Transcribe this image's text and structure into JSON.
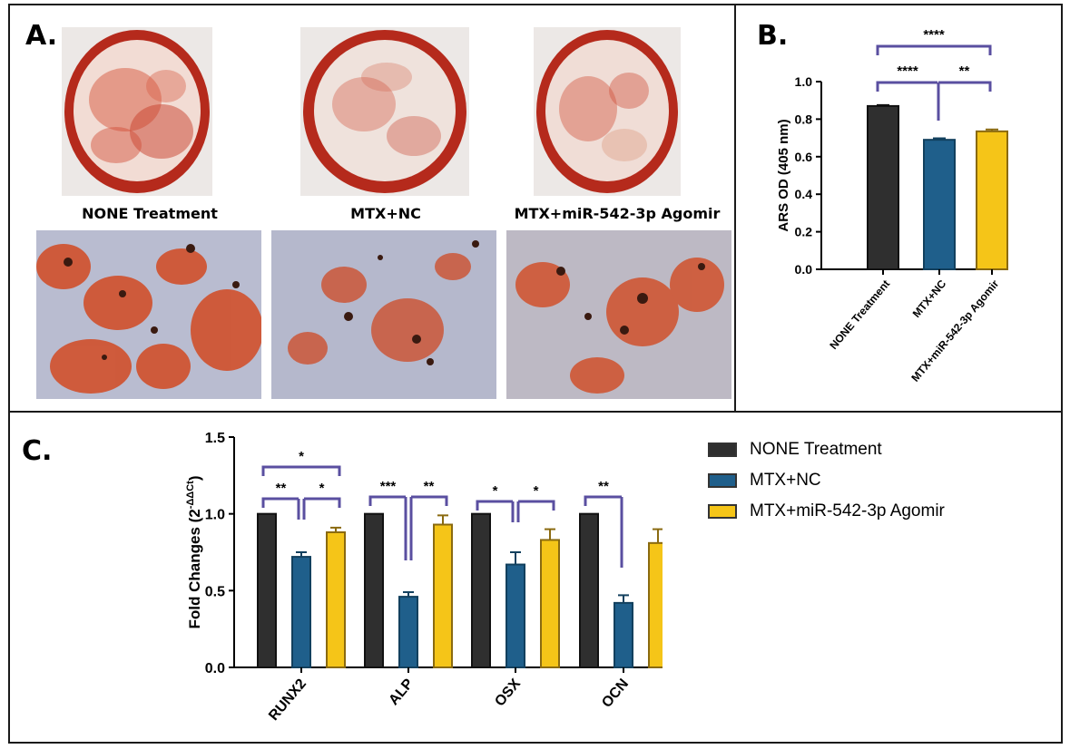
{
  "panels": {
    "a": {
      "letter": "A.",
      "captions": [
        "NONE Treatment",
        "MTX+NC",
        "MTX+miR-542-3p Agomir"
      ]
    },
    "b": {
      "letter": "B."
    },
    "c": {
      "letter": "C."
    }
  },
  "colors": {
    "none": "#2f2f2f",
    "mtx_nc": "#1f5f8b",
    "agomir": "#f5c518",
    "bracket": "#5a4fa0",
    "stain_red": "#c0321e"
  },
  "chart_data": [
    {
      "id": "ars",
      "type": "bar",
      "ylabel": "ARS OD (405 nm)",
      "ylim": [
        0,
        1.0
      ],
      "yticks": [
        "0.0",
        "0.2",
        "0.4",
        "0.6",
        "0.8",
        "1.0"
      ],
      "categories": [
        "NONE Treatment",
        "MTX+NC",
        "MTX+miR-542-3p Agomir"
      ],
      "values": [
        0.87,
        0.69,
        0.735
      ],
      "errors": [
        0.005,
        0.008,
        0.01
      ],
      "significance": [
        "****",
        "**",
        "****"
      ]
    },
    {
      "id": "fold",
      "type": "bar",
      "ylabel": "Fold Changes (2",
      "ylabel_sup": "-ΔΔCt",
      "ylabel_end": ")",
      "ylim": [
        0,
        1.5
      ],
      "yticks": [
        "0.0",
        "0.5",
        "1.0",
        "1.5"
      ],
      "categories": [
        "RUNX2",
        "ALP",
        "OSX",
        "OCN"
      ],
      "series": [
        {
          "name": "NONE Treatment",
          "values": [
            1.0,
            1.0,
            1.0,
            1.0
          ],
          "errors": [
            0,
            0,
            0,
            0
          ]
        },
        {
          "name": "MTX+NC",
          "values": [
            0.72,
            0.46,
            0.67,
            0.42
          ],
          "errors": [
            0.03,
            0.03,
            0.08,
            0.05
          ]
        },
        {
          "name": "MTX+miR-542-3p Agomir",
          "values": [
            0.88,
            0.93,
            0.83,
            0.81
          ],
          "errors": [
            0.03,
            0.06,
            0.07,
            0.09
          ]
        }
      ],
      "significance": [
        "*",
        "**",
        "*",
        "***",
        "**",
        "*",
        "*",
        "**"
      ],
      "legend": "right"
    }
  ]
}
